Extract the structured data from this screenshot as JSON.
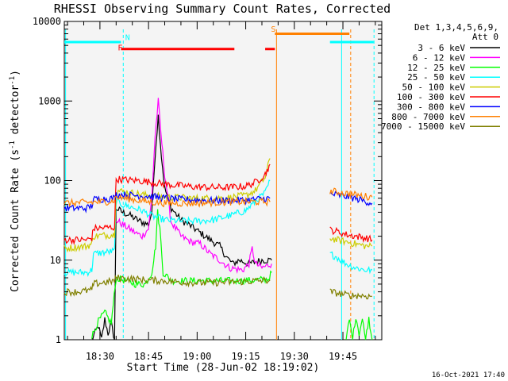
{
  "chart_data": {
    "type": "line",
    "title": "RHESSI Observing Summary Count Rates, Corrected",
    "xlabel": "Start Time (28-Jun-02 18:19:02)",
    "ylabel_main": "Corrected Count Rate (s",
    "ylabel_sup": "-1",
    "ylabel_mid": " detector",
    "ylabel_sup2": "-1",
    "ylabel_end": ")",
    "yscale": "log",
    "ylim": [
      1,
      10000
    ],
    "xlim": [
      "18:19",
      "19:57"
    ],
    "x_ticks": [
      {
        "t": 30,
        "label": "18:30"
      },
      {
        "t": 45,
        "label": "18:45"
      },
      {
        "t": 60,
        "label": "19:00"
      },
      {
        "t": 75,
        "label": "19:15"
      },
      {
        "t": 90,
        "label": "19:30"
      },
      {
        "t": 105,
        "label": "19:45"
      }
    ],
    "y_ticks": [
      {
        "v": 1,
        "label": "1"
      },
      {
        "v": 10,
        "label": "10"
      },
      {
        "v": 100,
        "label": "100"
      },
      {
        "v": 1000,
        "label": "1000"
      },
      {
        "v": 10000,
        "label": "10000"
      }
    ],
    "legend_header": [
      "Det 1,3,4,5,6,9,",
      "Att 0"
    ],
    "legend_placement": "right",
    "series": [
      {
        "name": "3 - 6 keV",
        "color": "#000000",
        "segments": [
          [
            [
              27.5,
              1
            ],
            [
              29.5,
              1.5
            ],
            [
              30.5,
              1
            ],
            [
              31.5,
              1.8
            ],
            [
              32.5,
              1.2
            ],
            [
              33.5,
              1.6
            ],
            [
              34.5,
              1
            ],
            [
              35,
              45
            ],
            [
              37,
              40
            ],
            [
              39,
              37
            ],
            [
              41,
              33
            ],
            [
              43,
              30
            ],
            [
              45,
              28
            ],
            [
              46,
              40
            ],
            [
              47,
              200
            ],
            [
              48,
              650
            ],
            [
              49,
              200
            ],
            [
              50,
              80
            ],
            [
              52,
              45
            ],
            [
              55,
              32
            ],
            [
              58,
              27
            ],
            [
              61,
              22
            ],
            [
              64,
              18
            ],
            [
              67,
              15
            ],
            [
              69,
              11
            ],
            [
              71,
              9
            ],
            [
              73,
              10
            ],
            [
              76,
              9
            ],
            [
              80,
              10
            ],
            [
              83,
              10
            ]
          ]
        ]
      },
      {
        "name": "6 - 12 keV",
        "color": "#ff00ff",
        "segments": [
          [
            [
              35,
              32
            ],
            [
              37,
              28
            ],
            [
              39,
              25
            ],
            [
              41,
              22
            ],
            [
              43,
              20
            ],
            [
              45,
              25
            ],
            [
              46,
              60
            ],
            [
              47,
              350
            ],
            [
              48,
              1000
            ],
            [
              48.8,
              400
            ],
            [
              50,
              120
            ],
            [
              52,
              30
            ],
            [
              55,
              20
            ],
            [
              58,
              17
            ],
            [
              61,
              16
            ],
            [
              64,
              12
            ],
            [
              67,
              10
            ],
            [
              70,
              8
            ],
            [
              74,
              7.5
            ],
            [
              76,
              9
            ],
            [
              77,
              14
            ],
            [
              78,
              9
            ],
            [
              80,
              8
            ],
            [
              83,
              9
            ]
          ]
        ]
      },
      {
        "name": "12 - 25 keV",
        "color": "#00ff00",
        "segments": [
          [
            [
              27.5,
              1.1
            ],
            [
              29.5,
              1.7
            ],
            [
              31.5,
              2.2
            ],
            [
              33.5,
              1.6
            ],
            [
              35,
              6
            ],
            [
              38,
              5.5
            ],
            [
              41,
              5
            ],
            [
              44,
              5
            ],
            [
              46,
              7
            ],
            [
              47.2,
              15
            ],
            [
              47.8,
              40
            ],
            [
              48.5,
              25
            ],
            [
              49.5,
              7
            ],
            [
              52,
              5.5
            ],
            [
              58,
              5.5
            ],
            [
              65,
              5.5
            ],
            [
              72,
              5.5
            ],
            [
              78,
              5.6
            ],
            [
              82,
              5.8
            ],
            [
              83,
              7
            ]
          ],
          [
            [
              106,
              1
            ],
            [
              107,
              1.8
            ],
            [
              108,
              1
            ],
            [
              109,
              2
            ],
            [
              110,
              1.2
            ],
            [
              111,
              1.8
            ],
            [
              112,
              1
            ],
            [
              113,
              1.9
            ],
            [
              114,
              1
            ]
          ]
        ]
      },
      {
        "name": "25 - 50 keV",
        "color": "#00ffff",
        "segments": [
          [
            [
              19,
              7
            ],
            [
              26,
              7
            ],
            [
              27.5,
              7.5
            ],
            [
              28,
              12
            ],
            [
              34.5,
              13
            ],
            [
              35,
              55
            ],
            [
              37,
              50
            ],
            [
              40,
              46
            ],
            [
              43,
              42
            ],
            [
              46,
              36
            ],
            [
              50,
              32
            ],
            [
              55,
              31
            ],
            [
              60,
              31
            ],
            [
              65,
              32
            ],
            [
              70,
              36
            ],
            [
              75,
              42
            ],
            [
              78,
              55
            ],
            [
              81,
              70
            ],
            [
              82.5,
              100
            ]
          ],
          [
            [
              101,
              12
            ],
            [
              103,
              11
            ],
            [
              106,
              9
            ],
            [
              109,
              8
            ],
            [
              112,
              7.5
            ],
            [
              114,
              7.5
            ]
          ]
        ]
      },
      {
        "name": "50 - 100 keV",
        "color": "#cccc00",
        "segments": [
          [
            [
              19,
              14
            ],
            [
              26,
              15
            ],
            [
              27.5,
              16
            ],
            [
              28,
              20
            ],
            [
              34.5,
              21
            ],
            [
              35,
              75
            ],
            [
              40,
              70
            ],
            [
              45,
              65
            ],
            [
              50,
              62
            ],
            [
              55,
              61
            ],
            [
              60,
              60
            ],
            [
              65,
              60
            ],
            [
              70,
              61
            ],
            [
              75,
              65
            ],
            [
              78,
              75
            ],
            [
              81,
              110
            ],
            [
              82.5,
              190
            ]
          ],
          [
            [
              101,
              19
            ],
            [
              103,
              18
            ],
            [
              106,
              17
            ],
            [
              109,
              16
            ],
            [
              112,
              15
            ],
            [
              114,
              15
            ]
          ]
        ]
      },
      {
        "name": "100 - 300 keV",
        "color": "#ff0000",
        "segments": [
          [
            [
              19,
              18
            ],
            [
              26,
              18
            ],
            [
              27.5,
              19
            ],
            [
              28,
              25
            ],
            [
              34.5,
              26
            ],
            [
              35,
              105
            ],
            [
              38,
              102
            ],
            [
              42,
              100
            ],
            [
              46,
              95
            ],
            [
              50,
              90
            ],
            [
              55,
              86
            ],
            [
              60,
              83
            ],
            [
              65,
              82
            ],
            [
              70,
              82
            ],
            [
              75,
              85
            ],
            [
              78,
              95
            ],
            [
              81,
              120
            ],
            [
              82.5,
              160
            ]
          ],
          [
            [
              101,
              24
            ],
            [
              103,
              23
            ],
            [
              106,
              21
            ],
            [
              109,
              20
            ],
            [
              112,
              19
            ],
            [
              114,
              18
            ]
          ]
        ]
      },
      {
        "name": "300 - 800 keV",
        "color": "#0000ff",
        "segments": [
          [
            [
              19,
              45
            ],
            [
              26,
              45
            ],
            [
              27.5,
              48
            ],
            [
              28,
              58
            ],
            [
              34.5,
              60
            ],
            [
              35,
              67
            ],
            [
              38,
              66
            ],
            [
              42,
              65
            ],
            [
              46,
              63
            ],
            [
              50,
              60
            ],
            [
              55,
              58
            ],
            [
              60,
              57
            ],
            [
              65,
              56
            ],
            [
              70,
              56
            ],
            [
              75,
              57
            ],
            [
              78,
              58
            ],
            [
              82.5,
              60
            ]
          ],
          [
            [
              101,
              68
            ],
            [
              104,
              65
            ],
            [
              107,
              62
            ],
            [
              110,
              58
            ],
            [
              114,
              52
            ]
          ]
        ]
      },
      {
        "name": "800 - 7000 keV",
        "color": "#ff8000",
        "segments": [
          [
            [
              19,
              52
            ],
            [
              26,
              53
            ],
            [
              34,
              55
            ],
            [
              35,
              62
            ],
            [
              40,
              58
            ],
            [
              45,
              54
            ],
            [
              50,
              52
            ],
            [
              55,
              52
            ],
            [
              60,
              52
            ],
            [
              65,
              53
            ],
            [
              70,
              54
            ],
            [
              75,
              54
            ],
            [
              82.5,
              54
            ]
          ],
          [
            [
              101,
              74
            ],
            [
              104,
              71
            ],
            [
              107,
              68
            ],
            [
              110,
              65
            ],
            [
              114,
              62
            ]
          ]
        ]
      },
      {
        "name": "7000 - 15000 keV",
        "color": "#808000",
        "segments": [
          [
            [
              19,
              4
            ],
            [
              23,
              4
            ],
            [
              27.5,
              4.2
            ],
            [
              28,
              5
            ],
            [
              34.5,
              5.5
            ],
            [
              35,
              6
            ],
            [
              40,
              5.8
            ],
            [
              45,
              5.6
            ],
            [
              50,
              5.5
            ],
            [
              55,
              5.3
            ],
            [
              60,
              5.2
            ],
            [
              65,
              5.2
            ],
            [
              70,
              5.3
            ],
            [
              75,
              5.4
            ],
            [
              82.5,
              5.6
            ]
          ],
          [
            [
              101,
              4
            ],
            [
              104,
              3.8
            ],
            [
              107,
              3.6
            ],
            [
              110,
              3.6
            ],
            [
              114,
              3.5
            ]
          ]
        ]
      }
    ],
    "flag_lines": [
      {
        "label": "",
        "color": "#00ffff",
        "value": 5500,
        "ranges": [
          [
            19,
            36.5
          ],
          [
            101,
            114.5
          ]
        ]
      },
      {
        "label": "N",
        "color": "#00ffff",
        "value": 5500,
        "ranges": []
      },
      {
        "label": "F",
        "color": "#ff0000",
        "value": 4500,
        "ranges": [
          [
            36.5,
            71.5
          ],
          [
            81,
            84
          ]
        ]
      },
      {
        "label": "S",
        "color": "#ff8000",
        "value": 7000,
        "ranges": [
          [
            84,
            107
          ]
        ]
      }
    ],
    "eclipse_lines": [
      {
        "color": "#00ffff",
        "t": 19.4,
        "style": "solid"
      },
      {
        "color": "#00ffff",
        "t": 37.2,
        "style": "dash"
      },
      {
        "color": "#ff8000",
        "t": 84.5,
        "style": "solid"
      },
      {
        "color": "#00ffff",
        "t": 104.6,
        "style": "solid"
      },
      {
        "color": "#ff8000",
        "t": 107.4,
        "style": "dash"
      },
      {
        "color": "#00ffff",
        "t": 114.6,
        "style": "dash"
      }
    ],
    "timestamp": "16-Oct-2021 17:40"
  }
}
